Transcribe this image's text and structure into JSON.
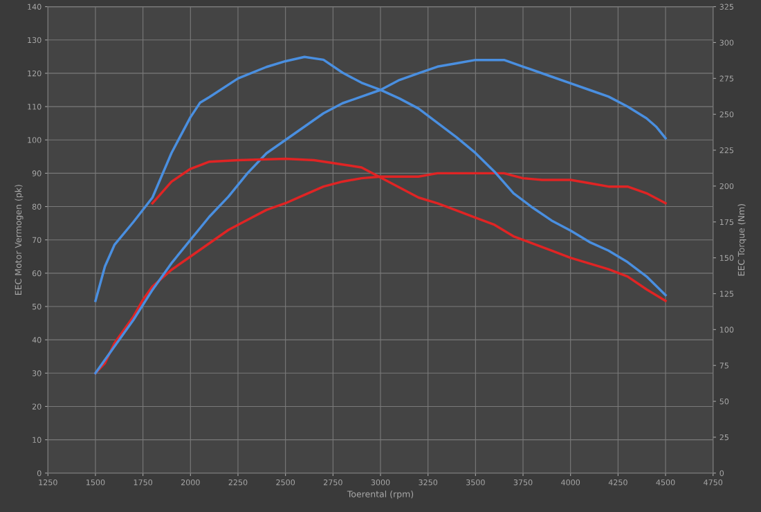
{
  "chart_data": {
    "type": "line",
    "xlabel": "Toerental (rpm)",
    "ylabel": "EEC Motor Vermogen (pk)",
    "y2label": "EEC Torque (Nm)",
    "xlim": [
      1250,
      4750
    ],
    "xticks": [
      1250,
      1500,
      1750,
      2000,
      2250,
      2500,
      2750,
      3000,
      3250,
      3500,
      3750,
      4000,
      4250,
      4500,
      4750
    ],
    "ylim": [
      0,
      140
    ],
    "yticks": [
      0,
      10,
      20,
      30,
      40,
      50,
      60,
      70,
      80,
      90,
      100,
      110,
      120,
      130,
      140
    ],
    "y2lim": [
      0,
      325
    ],
    "y2ticks": [
      0,
      25,
      50,
      75,
      100,
      125,
      150,
      175,
      200,
      225,
      250,
      275,
      300,
      325
    ],
    "grid": true,
    "series": [
      {
        "color": "#e02424",
        "axis": "y",
        "x": [
          1500,
          1550,
          1600,
          1700,
          1750,
          1800,
          1900,
          2000,
          2100,
          2200,
          2300,
          2400,
          2500,
          2600,
          2700,
          2800,
          2900,
          3000,
          3100,
          3200,
          3300,
          3500,
          3650,
          3750,
          3850,
          4000,
          4100,
          4200,
          4300,
          4400,
          4500
        ],
        "values": [
          30,
          33,
          39,
          47,
          52,
          56,
          61,
          65,
          69,
          73,
          76,
          79,
          81,
          83.5,
          86,
          87.5,
          88.5,
          89,
          89,
          89,
          90,
          90,
          90,
          88.5,
          88,
          88,
          87,
          86,
          86,
          84,
          81
        ]
      },
      {
        "color": "#4a8fe0",
        "axis": "y",
        "x": [
          1500,
          1600,
          1700,
          1800,
          1900,
          2000,
          2100,
          2200,
          2300,
          2400,
          2500,
          2600,
          2700,
          2800,
          2900,
          3000,
          3100,
          3200,
          3300,
          3400,
          3500,
          3650,
          3750,
          3900,
          4000,
          4100,
          4200,
          4300,
          4400,
          4450,
          4500
        ],
        "values": [
          30,
          38,
          46,
          55,
          63,
          70,
          77,
          83,
          90,
          96,
          100,
          104,
          108,
          111,
          113,
          115,
          118,
          120,
          122,
          123,
          124,
          124,
          122,
          119,
          117,
          115,
          113,
          110,
          106.5,
          104,
          100.5
        ]
      },
      {
        "color": "#e02424",
        "axis": "y2",
        "x": [
          1800,
          1900,
          2000,
          2100,
          2250,
          2500,
          2650,
          2800,
          2900,
          3000,
          3100,
          3200,
          3300,
          3400,
          3500,
          3600,
          3700,
          3800,
          3900,
          4000,
          4100,
          4200,
          4300,
          4400,
          4500
        ],
        "values": [
          188,
          203,
          212,
          217,
          218,
          219,
          218,
          215,
          213,
          206,
          199,
          192,
          188,
          183,
          178,
          173,
          165,
          160,
          155,
          150,
          146,
          142,
          137,
          128,
          120
        ]
      },
      {
        "color": "#4a8fe0",
        "axis": "y2",
        "x": [
          1500,
          1550,
          1600,
          1700,
          1800,
          1900,
          2000,
          2050,
          2100,
          2250,
          2400,
          2500,
          2600,
          2700,
          2800,
          2900,
          3000,
          3100,
          3200,
          3300,
          3400,
          3500,
          3600,
          3700,
          3800,
          3900,
          4000,
          4100,
          4200,
          4300,
          4400,
          4500
        ],
        "values": [
          120,
          144,
          159,
          175,
          192,
          223,
          248,
          258,
          262,
          275,
          283,
          287,
          290,
          288,
          279,
          272,
          267,
          261,
          254,
          244,
          234,
          223,
          210,
          195,
          185,
          176,
          169,
          161,
          155,
          147,
          137,
          124
        ]
      }
    ]
  }
}
